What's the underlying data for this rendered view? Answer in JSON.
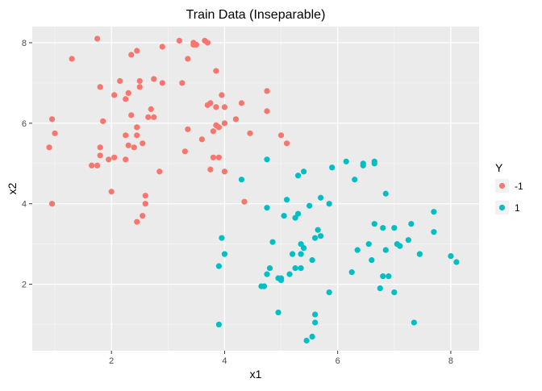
{
  "chart_data": {
    "type": "scatter",
    "title": "Train Data (Inseparable)",
    "xlabel": "x1",
    "ylabel": "x2",
    "xlim": [
      0.6,
      8.5
    ],
    "ylim": [
      0.35,
      8.4
    ],
    "x_ticks": [
      2,
      4,
      6,
      8
    ],
    "y_ticks": [
      2,
      4,
      6,
      8
    ],
    "x_tick_labels": [
      "2",
      "4",
      "6",
      "8"
    ],
    "y_tick_labels": [
      "2",
      "4",
      "6",
      "8"
    ],
    "grid": true,
    "legend": {
      "title": "Y",
      "placement": "right"
    },
    "colors": {
      "panel": "#ebebeb",
      "grid_major": "#ffffff",
      "grid_minor": "#f5f5f5",
      "tick": "#333333",
      "legend_key_bg": "#f2f2f2"
    },
    "series": [
      {
        "name": "-1",
        "color": "#F8766D",
        "points": [
          [
            0.9,
            5.4
          ],
          [
            0.95,
            6.1
          ],
          [
            1.0,
            5.75
          ],
          [
            0.95,
            4.0
          ],
          [
            1.3,
            7.6
          ],
          [
            1.65,
            4.95
          ],
          [
            1.75,
            4.95
          ],
          [
            1.75,
            8.1
          ],
          [
            1.8,
            6.9
          ],
          [
            1.8,
            5.2
          ],
          [
            1.8,
            5.4
          ],
          [
            1.85,
            6.05
          ],
          [
            1.95,
            5.1
          ],
          [
            2.0,
            4.3
          ],
          [
            2.05,
            5.15
          ],
          [
            2.05,
            6.7
          ],
          [
            2.15,
            7.05
          ],
          [
            2.25,
            5.1
          ],
          [
            2.25,
            5.7
          ],
          [
            2.25,
            6.6
          ],
          [
            2.3,
            5.45
          ],
          [
            2.3,
            6.75
          ],
          [
            2.35,
            6.2
          ],
          [
            2.35,
            7.7
          ],
          [
            2.4,
            5.4
          ],
          [
            2.45,
            7.8
          ],
          [
            2.45,
            5.9
          ],
          [
            2.45,
            3.55
          ],
          [
            2.45,
            5.7
          ],
          [
            2.5,
            7.05
          ],
          [
            2.5,
            6.9
          ],
          [
            2.55,
            3.7
          ],
          [
            2.55,
            5.5
          ],
          [
            2.6,
            4.0
          ],
          [
            2.6,
            4.2
          ],
          [
            2.65,
            6.15
          ],
          [
            2.7,
            6.35
          ],
          [
            2.75,
            7.1
          ],
          [
            2.75,
            6.15
          ],
          [
            2.85,
            4.8
          ],
          [
            2.9,
            7.9
          ],
          [
            2.9,
            7.0
          ],
          [
            3.2,
            8.05
          ],
          [
            3.25,
            7.0
          ],
          [
            3.3,
            5.3
          ],
          [
            3.35,
            7.6
          ],
          [
            3.35,
            5.85
          ],
          [
            3.45,
            7.95
          ],
          [
            3.45,
            8.0
          ],
          [
            3.5,
            7.95
          ],
          [
            3.6,
            5.6
          ],
          [
            3.65,
            8.05
          ],
          [
            3.7,
            8.0
          ],
          [
            3.7,
            6.45
          ],
          [
            3.75,
            6.5
          ],
          [
            3.75,
            4.85
          ],
          [
            3.8,
            5.15
          ],
          [
            3.8,
            5.8
          ],
          [
            3.85,
            7.3
          ],
          [
            3.85,
            6.4
          ],
          [
            3.85,
            5.95
          ],
          [
            3.9,
            5.15
          ],
          [
            3.9,
            5.9
          ],
          [
            3.95,
            6.7
          ],
          [
            4.0,
            4.8
          ],
          [
            4.0,
            6.0
          ],
          [
            4.0,
            6.4
          ],
          [
            4.2,
            6.1
          ],
          [
            4.3,
            6.5
          ],
          [
            4.35,
            4.05
          ],
          [
            4.45,
            5.75
          ],
          [
            4.75,
            6.8
          ],
          [
            4.75,
            6.3
          ],
          [
            5.0,
            5.7
          ],
          [
            5.1,
            5.5
          ]
        ]
      },
      {
        "name": "1",
        "color": "#00BFC4",
        "points": [
          [
            3.9,
            2.45
          ],
          [
            3.9,
            1.0
          ],
          [
            3.95,
            3.15
          ],
          [
            4.0,
            2.75
          ],
          [
            4.3,
            4.6
          ],
          [
            4.65,
            1.95
          ],
          [
            4.7,
            1.95
          ],
          [
            4.75,
            5.1
          ],
          [
            4.75,
            3.9
          ],
          [
            4.75,
            2.25
          ],
          [
            4.8,
            2.4
          ],
          [
            4.85,
            3.05
          ],
          [
            4.95,
            2.15
          ],
          [
            4.95,
            1.3
          ],
          [
            5.0,
            2.1
          ],
          [
            5.0,
            2.15
          ],
          [
            5.05,
            3.7
          ],
          [
            5.1,
            4.1
          ],
          [
            5.15,
            2.25
          ],
          [
            5.2,
            2.75
          ],
          [
            5.25,
            2.4
          ],
          [
            5.25,
            3.65
          ],
          [
            5.3,
            3.75
          ],
          [
            5.3,
            4.7
          ],
          [
            5.35,
            2.75
          ],
          [
            5.35,
            2.4
          ],
          [
            5.35,
            3.0
          ],
          [
            5.4,
            4.8
          ],
          [
            5.4,
            2.9
          ],
          [
            5.45,
            0.6
          ],
          [
            5.5,
            3.95
          ],
          [
            5.55,
            0.7
          ],
          [
            5.55,
            2.6
          ],
          [
            5.6,
            1.25
          ],
          [
            5.6,
            1.05
          ],
          [
            5.6,
            3.15
          ],
          [
            5.65,
            3.35
          ],
          [
            5.7,
            3.2
          ],
          [
            5.7,
            4.15
          ],
          [
            5.85,
            1.8
          ],
          [
            5.85,
            4.0
          ],
          [
            5.9,
            4.9
          ],
          [
            6.15,
            5.05
          ],
          [
            6.25,
            2.3
          ],
          [
            6.3,
            4.6
          ],
          [
            6.35,
            2.85
          ],
          [
            6.45,
            5.0
          ],
          [
            6.45,
            4.95
          ],
          [
            6.55,
            3.0
          ],
          [
            6.6,
            2.6
          ],
          [
            6.65,
            5.05
          ],
          [
            6.65,
            5.0
          ],
          [
            6.65,
            3.5
          ],
          [
            6.75,
            1.9
          ],
          [
            6.8,
            2.2
          ],
          [
            6.8,
            3.4
          ],
          [
            6.85,
            4.25
          ],
          [
            6.85,
            2.85
          ],
          [
            6.9,
            2.2
          ],
          [
            7.0,
            1.8
          ],
          [
            7.0,
            3.4
          ],
          [
            7.05,
            3.0
          ],
          [
            7.1,
            2.95
          ],
          [
            7.25,
            3.1
          ],
          [
            7.3,
            3.5
          ],
          [
            7.35,
            1.05
          ],
          [
            7.45,
            2.75
          ],
          [
            7.7,
            3.8
          ],
          [
            7.7,
            3.3
          ],
          [
            8.0,
            2.7
          ],
          [
            8.1,
            2.55
          ]
        ]
      }
    ]
  }
}
